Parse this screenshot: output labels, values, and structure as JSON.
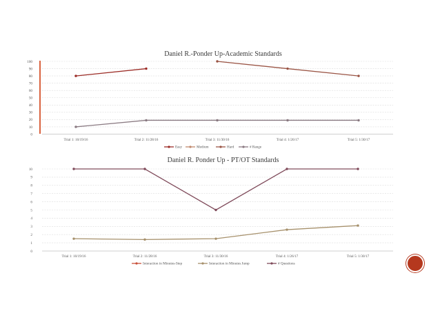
{
  "colors": {
    "grid": "#dcdcdc",
    "axis": "#bfbfbf",
    "accent_bar": "#d9623f",
    "badge": "#b5381e"
  },
  "chart_data": [
    {
      "type": "line",
      "title": "Daniel R.-Ponder Up-Academic Standards",
      "xlabel": "",
      "ylabel": "",
      "ylim": [
        0,
        100
      ],
      "yticks": [
        0,
        10,
        20,
        30,
        40,
        50,
        60,
        70,
        80,
        90,
        100
      ],
      "grid": true,
      "legend_position": "bottom",
      "categories": [
        "Trial 1: 10/19/16",
        "Trial 2: 11/28/16",
        "Trial 3: 11/30/16",
        "Trial 4: 1/26/17",
        "Trial 5: 1/30/17"
      ],
      "series": [
        {
          "name": "Easy",
          "color": "#9b2b25",
          "values": [
            80,
            90,
            null,
            null,
            null
          ]
        },
        {
          "name": "Medium",
          "color": "#c0886d",
          "values": [
            null,
            null,
            null,
            null,
            null
          ]
        },
        {
          "name": "Hard",
          "color": "#9a5444",
          "values": [
            null,
            null,
            100,
            90,
            80
          ]
        },
        {
          "name": "# Range",
          "color": "#8a7a82",
          "values": [
            10,
            19,
            19,
            19,
            19
          ]
        }
      ]
    },
    {
      "type": "line",
      "title": "Daniel R. Ponder Up - PT/OT Standards",
      "xlabel": "",
      "ylabel": "",
      "ylim": [
        0,
        10
      ],
      "yticks": [
        0,
        1,
        2,
        3,
        4,
        5,
        6,
        7,
        8,
        9,
        10
      ],
      "grid": true,
      "legend_position": "bottom",
      "categories": [
        "Trial 1: 10/19/16",
        "Trial 2: 11/28/16",
        "Trial 3: 11/30/16",
        "Trial 4: 1/26/17",
        "Trial 5: 1/30/17"
      ],
      "series": [
        {
          "name": "Interaction in Minutes-Step",
          "color": "#c8503a",
          "values": [
            null,
            null,
            null,
            null,
            null
          ]
        },
        {
          "name": "Interaction in Minutes Jump",
          "color": "#a6906b",
          "values": [
            1.5,
            1.4,
            1.5,
            2.6,
            3.1
          ]
        },
        {
          "name": "# Questions",
          "color": "#7f4a5a",
          "values": [
            10,
            10,
            5,
            10,
            10
          ]
        }
      ]
    }
  ]
}
